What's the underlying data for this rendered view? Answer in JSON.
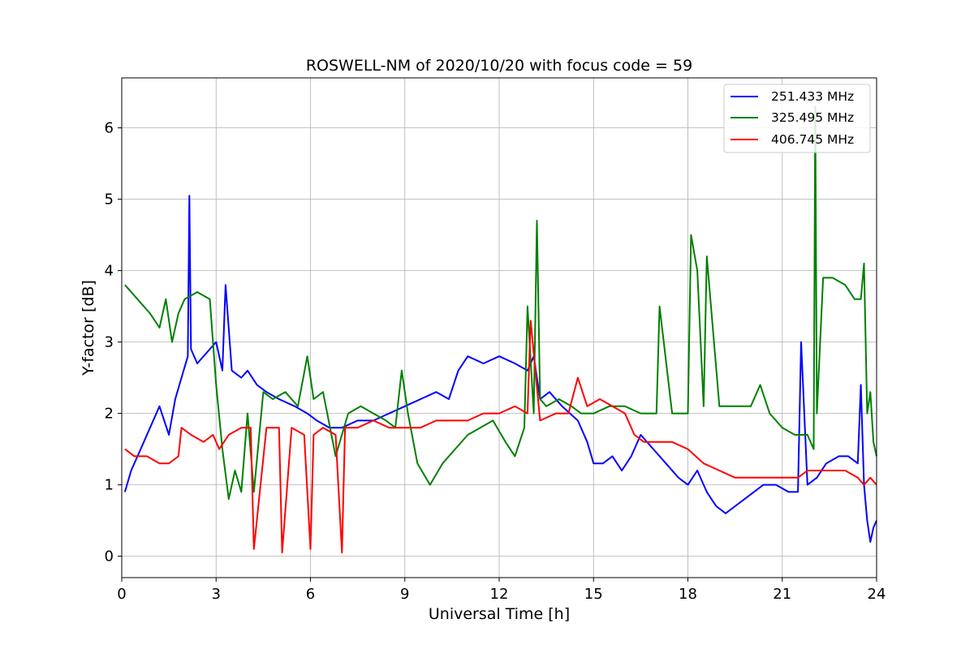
{
  "chart_data": {
    "type": "line",
    "title": "ROSWELL-NM of 2020/10/20 with focus code = 59",
    "xlabel": "Universal Time [h]",
    "ylabel": "Y-factor [dB]",
    "xlim": [
      0,
      24
    ],
    "ylim": [
      -0.3,
      6.7
    ],
    "xticks": [
      0,
      3,
      6,
      9,
      12,
      15,
      18,
      21,
      24
    ],
    "yticks": [
      0,
      1,
      2,
      3,
      4,
      5,
      6
    ],
    "grid": true,
    "legend_position": "top-right",
    "series": [
      {
        "name": "251.433 MHz",
        "color": "#0000ff",
        "x": [
          0.1,
          0.3,
          0.6,
          0.9,
          1.2,
          1.5,
          1.7,
          1.9,
          2.1,
          2.15,
          2.2,
          2.4,
          2.6,
          2.8,
          3.0,
          3.2,
          3.3,
          3.5,
          3.8,
          4.0,
          4.3,
          4.6,
          5.0,
          5.5,
          5.9,
          6.2,
          6.6,
          7.0,
          7.5,
          8.0,
          8.5,
          9.0,
          9.5,
          10.0,
          10.4,
          10.7,
          11.0,
          11.5,
          12.0,
          12.5,
          12.9,
          13.1,
          13.3,
          13.6,
          14.0,
          14.5,
          14.8,
          15.0,
          15.3,
          15.6,
          15.9,
          16.2,
          16.5,
          16.9,
          17.3,
          17.7,
          18.0,
          18.3,
          18.6,
          18.9,
          19.2,
          19.5,
          19.8,
          20.1,
          20.4,
          20.8,
          21.2,
          21.5,
          21.6,
          21.8,
          22.1,
          22.4,
          22.8,
          23.1,
          23.4,
          23.5,
          23.6,
          23.7,
          23.8,
          23.9,
          24.0
        ],
        "values": [
          0.9,
          1.2,
          1.5,
          1.8,
          2.1,
          1.7,
          2.2,
          2.5,
          2.8,
          5.05,
          2.9,
          2.7,
          2.8,
          2.9,
          3.0,
          2.6,
          3.8,
          2.6,
          2.5,
          2.6,
          2.4,
          2.3,
          2.2,
          2.1,
          2.0,
          1.9,
          1.8,
          1.8,
          1.9,
          1.9,
          2.0,
          2.1,
          2.2,
          2.3,
          2.2,
          2.6,
          2.8,
          2.7,
          2.8,
          2.7,
          2.6,
          2.8,
          2.2,
          2.3,
          2.1,
          1.9,
          1.6,
          1.3,
          1.3,
          1.4,
          1.2,
          1.4,
          1.7,
          1.5,
          1.3,
          1.1,
          1.0,
          1.2,
          0.9,
          0.7,
          0.6,
          0.7,
          0.8,
          0.9,
          1.0,
          1.0,
          0.9,
          0.9,
          3.0,
          1.0,
          1.1,
          1.3,
          1.4,
          1.4,
          1.3,
          2.4,
          1.0,
          0.5,
          0.2,
          0.4,
          0.5
        ]
      },
      {
        "name": "325.495 MHz",
        "color": "#008000",
        "x": [
          0.1,
          0.5,
          0.9,
          1.2,
          1.4,
          1.6,
          1.8,
          2.0,
          2.4,
          2.8,
          3.0,
          3.2,
          3.4,
          3.6,
          3.8,
          4.0,
          4.2,
          4.5,
          4.8,
          5.2,
          5.6,
          5.9,
          6.1,
          6.4,
          6.8,
          7.2,
          7.6,
          8.0,
          8.4,
          8.7,
          8.9,
          9.1,
          9.4,
          9.8,
          10.2,
          10.6,
          11.0,
          11.4,
          11.8,
          12.2,
          12.5,
          12.8,
          12.9,
          13.1,
          13.2,
          13.3,
          13.5,
          13.9,
          14.3,
          14.6,
          15.0,
          15.5,
          16.0,
          16.5,
          17.0,
          17.1,
          17.5,
          18.0,
          18.1,
          18.3,
          18.5,
          18.6,
          19.0,
          19.5,
          20.0,
          20.3,
          20.6,
          21.0,
          21.4,
          21.8,
          22.0,
          22.05,
          22.1,
          22.3,
          22.6,
          23.0,
          23.3,
          23.5,
          23.6,
          23.7,
          23.8,
          23.9,
          24.0
        ],
        "values": [
          3.8,
          3.6,
          3.4,
          3.2,
          3.6,
          3.0,
          3.4,
          3.6,
          3.7,
          3.6,
          2.4,
          1.5,
          0.8,
          1.2,
          0.9,
          2.0,
          0.9,
          2.3,
          2.2,
          2.3,
          2.1,
          2.8,
          2.2,
          2.3,
          1.4,
          2.0,
          2.1,
          2.0,
          1.9,
          1.8,
          2.6,
          2.0,
          1.3,
          1.0,
          1.3,
          1.5,
          1.7,
          1.8,
          1.9,
          1.6,
          1.4,
          1.8,
          3.5,
          2.0,
          4.7,
          2.2,
          2.1,
          2.2,
          2.1,
          2.0,
          2.0,
          2.1,
          2.1,
          2.0,
          2.0,
          3.5,
          2.0,
          2.0,
          4.5,
          4.0,
          2.1,
          4.2,
          2.1,
          2.1,
          2.1,
          2.4,
          2.0,
          1.8,
          1.7,
          1.7,
          1.5,
          6.3,
          2.0,
          3.9,
          3.9,
          3.8,
          3.6,
          3.6,
          4.1,
          2.0,
          2.3,
          1.6,
          1.4
        ]
      },
      {
        "name": "406.745 MHz",
        "color": "#ff0000",
        "x": [
          0.1,
          0.4,
          0.8,
          1.2,
          1.5,
          1.8,
          1.9,
          2.2,
          2.6,
          2.9,
          3.1,
          3.4,
          3.8,
          4.1,
          4.2,
          4.6,
          5.0,
          5.1,
          5.4,
          5.8,
          6.0,
          6.1,
          6.4,
          6.8,
          7.0,
          7.1,
          7.5,
          8.0,
          8.5,
          9.0,
          9.5,
          10.0,
          10.5,
          11.0,
          11.5,
          12.0,
          12.5,
          12.9,
          13.0,
          13.3,
          13.8,
          14.2,
          14.5,
          14.8,
          15.2,
          15.6,
          16.0,
          16.3,
          16.6,
          17.0,
          17.5,
          18.0,
          18.5,
          19.0,
          19.5,
          20.0,
          20.5,
          21.0,
          21.5,
          21.8,
          22.1,
          22.5,
          23.0,
          23.4,
          23.6,
          23.8,
          24.0
        ],
        "values": [
          1.5,
          1.4,
          1.4,
          1.3,
          1.3,
          1.4,
          1.8,
          1.7,
          1.6,
          1.7,
          1.5,
          1.7,
          1.8,
          1.8,
          0.1,
          1.8,
          1.8,
          0.05,
          1.8,
          1.7,
          0.1,
          1.7,
          1.8,
          1.7,
          0.05,
          1.8,
          1.8,
          1.9,
          1.8,
          1.8,
          1.8,
          1.9,
          1.9,
          1.9,
          2.0,
          2.0,
          2.1,
          2.0,
          3.3,
          1.9,
          2.0,
          2.0,
          2.5,
          2.1,
          2.2,
          2.1,
          2.0,
          1.7,
          1.6,
          1.6,
          1.6,
          1.5,
          1.3,
          1.2,
          1.1,
          1.1,
          1.1,
          1.1,
          1.1,
          1.2,
          1.2,
          1.2,
          1.2,
          1.1,
          1.0,
          1.1,
          1.0
        ]
      }
    ]
  }
}
